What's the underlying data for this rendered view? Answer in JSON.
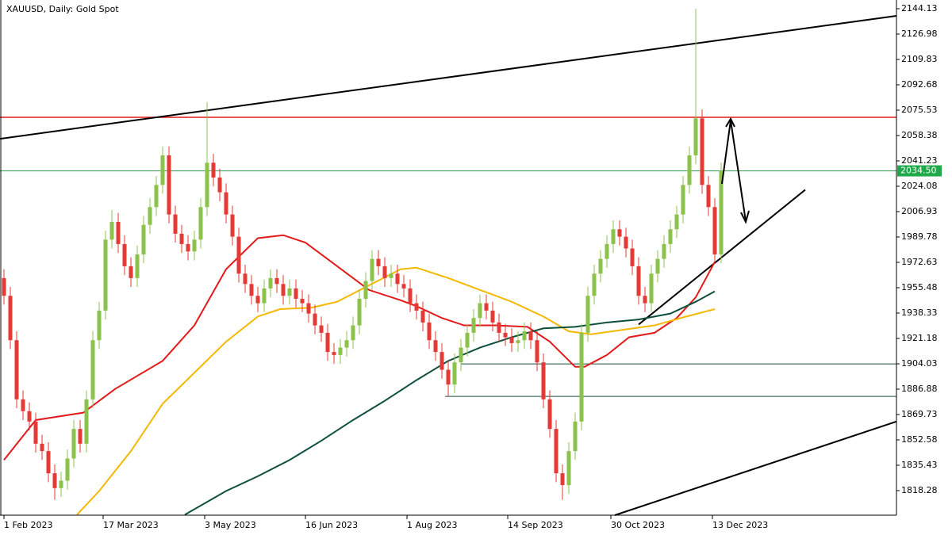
{
  "chart_data": {
    "type": "candlestick",
    "title": "XAUUSD, Daily:  Gold Spot",
    "up_color": "#8bc34a",
    "down_color": "#e53935",
    "x": [
      0,
      2,
      4,
      6,
      8,
      10,
      12,
      14,
      16,
      18,
      20,
      22,
      24,
      26,
      28,
      30,
      32,
      34,
      36,
      38,
      40,
      42,
      44,
      46,
      48,
      50,
      52,
      54,
      56,
      58,
      60,
      62,
      64,
      66,
      68,
      70,
      72,
      74,
      76,
      78,
      80,
      82,
      84,
      86,
      88,
      90,
      92,
      94,
      96,
      98,
      100,
      102,
      104,
      106,
      108,
      110,
      112,
      114,
      116,
      118,
      120,
      122,
      124,
      126,
      128,
      130,
      132,
      134,
      136,
      138,
      140,
      142,
      144,
      146,
      148,
      150,
      152,
      154,
      156,
      158,
      160,
      162,
      164,
      166,
      168,
      170,
      172,
      174,
      176,
      178,
      180,
      182,
      184,
      186,
      188,
      190,
      192,
      194,
      196,
      198,
      200,
      202,
      204,
      206,
      208,
      210,
      212,
      214,
      216,
      218,
      220,
      222,
      224,
      226
    ],
    "open": [
      1962,
      1950,
      1920,
      1880,
      1872,
      1865,
      1850,
      1845,
      1830,
      1820,
      1825,
      1840,
      1860,
      1850,
      1880,
      1920,
      1940,
      1988,
      2000,
      1985,
      1970,
      1962,
      1978,
      1998,
      2010,
      2025,
      2045,
      2005,
      1992,
      1985,
      1980,
      1988,
      2010,
      2040,
      2030,
      2020,
      2005,
      1990,
      1965,
      1958,
      1950,
      1945,
      1955,
      1962,
      1958,
      1950,
      1955,
      1948,
      1945,
      1938,
      1930,
      1925,
      1912,
      1910,
      1915,
      1920,
      1930,
      1948,
      1960,
      1975,
      1970,
      1962,
      1965,
      1958,
      1955,
      1945,
      1940,
      1932,
      1920,
      1912,
      1900,
      1890,
      1905,
      1915,
      1925,
      1935,
      1945,
      1940,
      1932,
      1925,
      1922,
      1918,
      1920,
      1926,
      1920,
      1905,
      1880,
      1860,
      1830,
      1822,
      1845,
      1865,
      1925,
      1950,
      1965,
      1975,
      1985,
      1995,
      1990,
      1982,
      1970,
      1950,
      1945,
      1965,
      1975,
      1985,
      1995,
      2005,
      2025,
      2045,
      2070,
      2025,
      2010,
      1978
    ],
    "high": [
      1968,
      1956,
      1926,
      1886,
      1878,
      1871,
      1856,
      1851,
      1836,
      1831,
      1846,
      1866,
      1866,
      1886,
      1926,
      1946,
      1994,
      2008,
      2006,
      1991,
      1976,
      1984,
      2004,
      2016,
      2031,
      2051,
      2051,
      2011,
      1998,
      1991,
      1994,
      2016,
      2081,
      2046,
      2036,
      2026,
      2011,
      1996,
      1971,
      1964,
      1956,
      1961,
      1968,
      1968,
      1964,
      1961,
      1961,
      1954,
      1951,
      1944,
      1936,
      1931,
      1918,
      1921,
      1926,
      1936,
      1954,
      1966,
      1981,
      1981,
      1976,
      1971,
      1971,
      1964,
      1961,
      1951,
      1946,
      1938,
      1926,
      1918,
      1906,
      1911,
      1921,
      1931,
      1941,
      1951,
      1951,
      1946,
      1938,
      1931,
      1928,
      1926,
      1932,
      1932,
      1926,
      1911,
      1886,
      1866,
      1836,
      1851,
      1871,
      1931,
      1956,
      1971,
      1981,
      1991,
      2001,
      2001,
      1996,
      1988,
      1976,
      1956,
      1971,
      1981,
      1991,
      2001,
      2011,
      2031,
      2051,
      2144,
      2076,
      2031,
      2016,
      2040
    ],
    "low": [
      1944,
      1914,
      1874,
      1866,
      1859,
      1844,
      1839,
      1824,
      1812,
      1814,
      1819,
      1834,
      1844,
      1844,
      1874,
      1914,
      1934,
      1982,
      1979,
      1964,
      1956,
      1956,
      1972,
      1992,
      2004,
      2019,
      1999,
      1986,
      1979,
      1974,
      1974,
      1982,
      2004,
      2024,
      2014,
      1999,
      1984,
      1959,
      1952,
      1944,
      1939,
      1939,
      1949,
      1952,
      1944,
      1944,
      1942,
      1939,
      1932,
      1924,
      1919,
      1906,
      1904,
      1904,
      1909,
      1914,
      1924,
      1942,
      1954,
      1964,
      1956,
      1956,
      1952,
      1949,
      1939,
      1934,
      1926,
      1914,
      1906,
      1894,
      1882,
      1884,
      1899,
      1909,
      1919,
      1929,
      1934,
      1926,
      1919,
      1916,
      1912,
      1912,
      1914,
      1914,
      1899,
      1874,
      1854,
      1824,
      1812,
      1816,
      1839,
      1859,
      1919,
      1944,
      1959,
      1969,
      1979,
      1984,
      1976,
      1964,
      1944,
      1939,
      1939,
      1959,
      1969,
      1979,
      1989,
      1999,
      2019,
      2039,
      2019,
      2004,
      1972,
      1972
    ],
    "close": [
      1950,
      1920,
      1880,
      1872,
      1865,
      1850,
      1845,
      1830,
      1820,
      1825,
      1840,
      1860,
      1850,
      1880,
      1920,
      1940,
      1988,
      2000,
      1985,
      1970,
      1962,
      1978,
      1998,
      2010,
      2025,
      2045,
      2005,
      1992,
      1985,
      1980,
      1988,
      2010,
      2040,
      2030,
      2020,
      2005,
      1990,
      1965,
      1958,
      1950,
      1945,
      1955,
      1962,
      1958,
      1950,
      1955,
      1948,
      1945,
      1938,
      1930,
      1925,
      1912,
      1910,
      1915,
      1920,
      1930,
      1948,
      1960,
      1975,
      1970,
      1962,
      1965,
      1958,
      1955,
      1945,
      1940,
      1932,
      1920,
      1912,
      1900,
      1890,
      1905,
      1915,
      1925,
      1935,
      1945,
      1940,
      1932,
      1925,
      1922,
      1918,
      1920,
      1926,
      1920,
      1905,
      1880,
      1860,
      1830,
      1822,
      1845,
      1865,
      1925,
      1950,
      1965,
      1975,
      1985,
      1995,
      1990,
      1982,
      1970,
      1950,
      1945,
      1965,
      1975,
      1985,
      1995,
      2005,
      2025,
      2045,
      2070,
      2025,
      2010,
      1978,
      2034.5
    ],
    "lines": [
      {
        "color": "#e31a1c",
        "x": [
          0,
          10,
          25,
          35,
          50,
          60,
          70,
          80,
          88,
          95,
          100,
          110,
          115,
          125,
          130,
          138,
          145,
          155,
          165,
          172,
          180,
          183,
          190,
          197,
          205,
          212,
          218,
          224
        ],
        "values": [
          1839,
          1866,
          1871,
          1887,
          1906,
          1930,
          1968,
          1989,
          1991,
          1986,
          1978,
          1962,
          1954,
          1947,
          1943,
          1935,
          1930,
          1930,
          1929,
          1919,
          1902,
          1902,
          1910,
          1922,
          1925,
          1935,
          1949,
          1973
        ]
      },
      {
        "color": "#f5b800",
        "x": [
          23,
          30,
          40,
          50,
          60,
          70,
          80,
          87,
          97,
          105,
          115,
          125,
          130,
          140,
          150,
          160,
          170,
          178,
          185,
          195,
          205,
          215,
          224
        ],
        "values": [
          1802,
          1818,
          1845,
          1877,
          1898,
          1919,
          1936,
          1941,
          1942,
          1946,
          1957,
          1968,
          1969,
          1962,
          1954,
          1946,
          1936,
          1926,
          1924,
          1927,
          1930,
          1936,
          1941
        ]
      },
      {
        "color": "#0d4f3c",
        "x": [
          57,
          70,
          80,
          90,
          100,
          110,
          120,
          130,
          140,
          150,
          160,
          170,
          180,
          190,
          200,
          210,
          218,
          224
        ],
        "values": [
          1802,
          1818,
          1828,
          1839,
          1852,
          1866,
          1879,
          1893,
          1906,
          1915,
          1922,
          1928,
          1929,
          1932,
          1934,
          1938,
          1946,
          1953
        ]
      }
    ],
    "trendlines": [
      {
        "x": [
          -1.25,
          281.25
        ],
        "values": [
          2056.2,
          2139.3
        ]
      },
      {
        "x": [
          192.5,
          281.25
        ],
        "values": [
          1801.67,
          1865
        ]
      },
      {
        "x": [
          200,
          252.5
        ],
        "values": [
          1930.6,
          2021.7
        ]
      }
    ],
    "levels": [
      {
        "value": 2070.7,
        "color": "#e31a1c",
        "x_start": -1.25
      },
      {
        "value": 2034.5,
        "color": "#2e9e4f",
        "x_start": -1.25
      },
      {
        "value": 1904,
        "color": "#1b4d3e",
        "x_start": 144
      },
      {
        "value": 1882,
        "color": "#1b4d3e",
        "x_start": 139
      }
    ],
    "last_price": {
      "value": 2034.5,
      "label": "2034.50",
      "color": "#1faa4a"
    },
    "xlim": [
      -1.25,
      281.25
    ],
    "xticks": [
      {
        "value": 0,
        "label": "1 Feb 2023"
      },
      {
        "value": 31.25,
        "label": "17 Mar 2023"
      },
      {
        "value": 63.25,
        "label": "3 May 2023"
      },
      {
        "value": 95,
        "label": "16 Jun 2023"
      },
      {
        "value": 127,
        "label": "1 Aug 2023"
      },
      {
        "value": 158.75,
        "label": "14 Sep 2023"
      },
      {
        "value": 191.25,
        "label": "30 Oct 2023"
      },
      {
        "value": 223.25,
        "label": "13 Dec 2023"
      }
    ],
    "ylim": [
      1801.67,
      2150.03
    ],
    "yticks": [
      2144.13,
      2126.98,
      2109.83,
      2092.68,
      2075.53,
      2058.38,
      2041.23,
      2024.08,
      2006.93,
      1989.78,
      1972.63,
      1955.48,
      1938.33,
      1921.18,
      1904.03,
      1886.88,
      1869.73,
      1852.58,
      1835.43,
      1818.28
    ]
  }
}
